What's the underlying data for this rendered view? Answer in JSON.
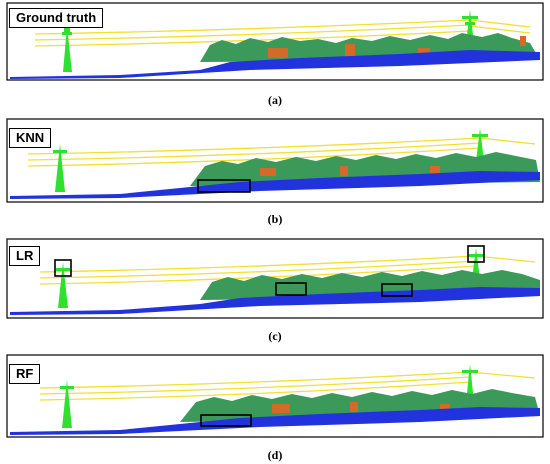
{
  "panels": [
    {
      "label": "Ground truth",
      "caption": "(a)"
    },
    {
      "label": "KNN",
      "caption": "(b)"
    },
    {
      "label": "LR",
      "caption": "(c)"
    },
    {
      "label": "RF",
      "caption": "(d)"
    }
  ],
  "colors": {
    "ground": "#2233dd",
    "vegetation": "#3b9a5a",
    "building": "#d46a2a",
    "power_line": "#f0e030",
    "pylon": "#30e030",
    "frame": "#000000"
  }
}
